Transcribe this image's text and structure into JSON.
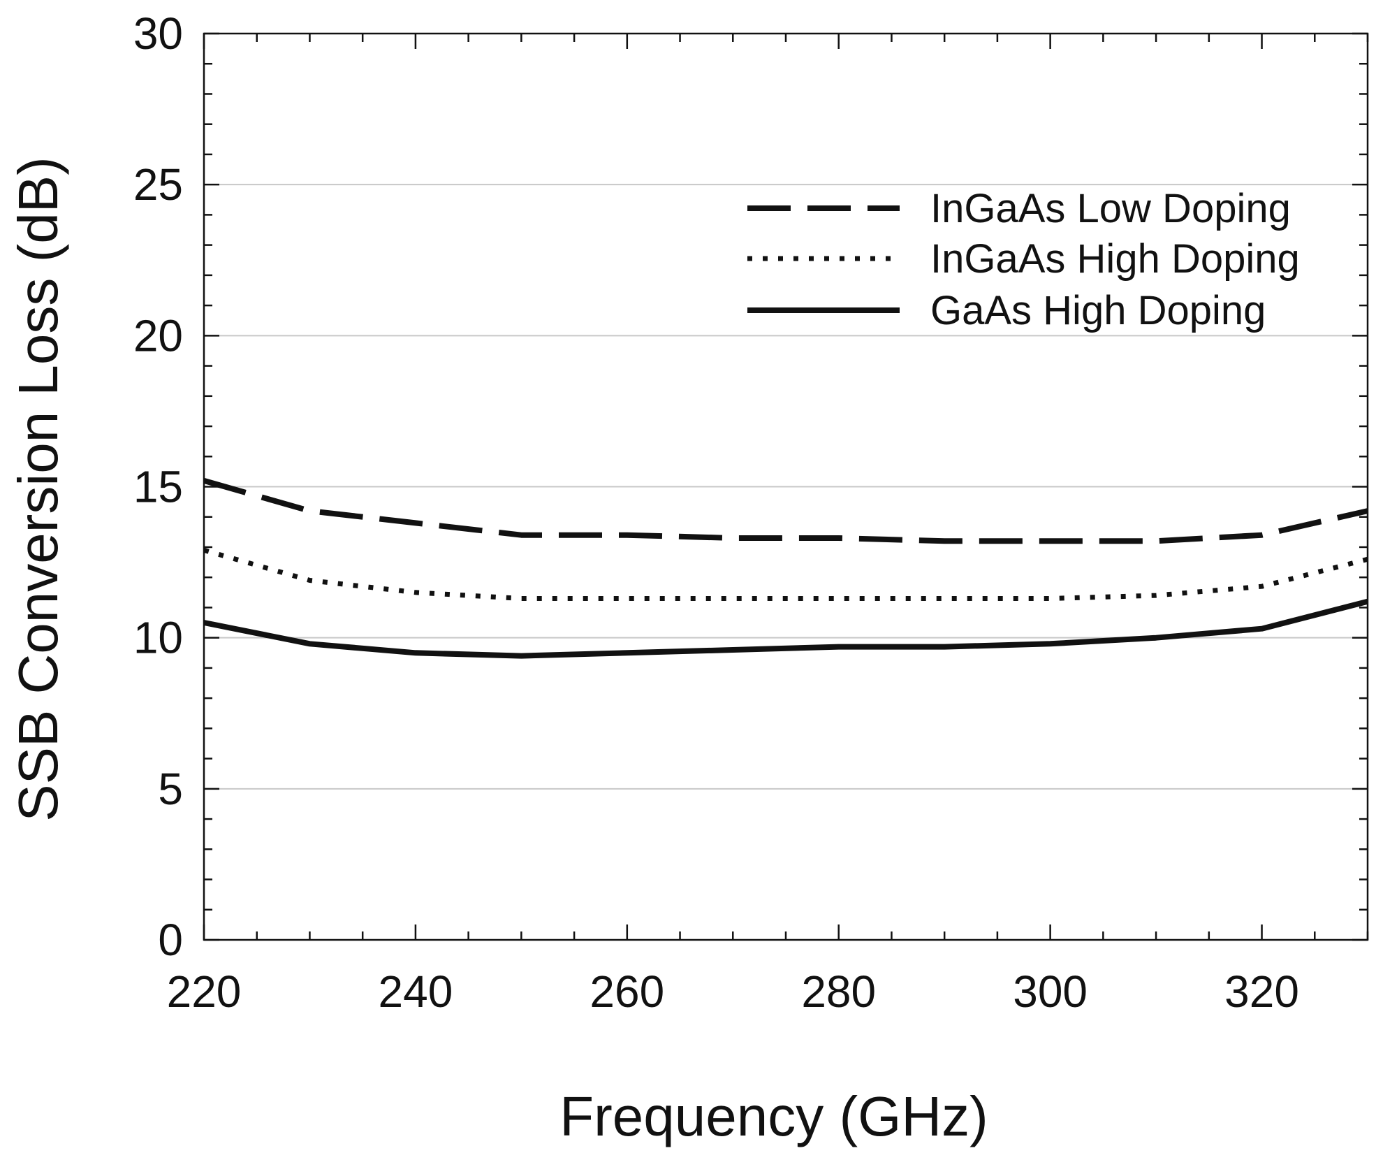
{
  "chart_data": {
    "type": "line",
    "title": "",
    "xlabel": "Frequency (GHz)",
    "ylabel": "SSB Conversion Loss (dB)",
    "xlim": [
      220,
      330
    ],
    "ylim": [
      0,
      30
    ],
    "xticks": [
      220,
      240,
      260,
      280,
      300,
      320
    ],
    "yticks": [
      0,
      5,
      10,
      15,
      20,
      25,
      30
    ],
    "grid": "horizontal",
    "legend": "top-right",
    "series": [
      {
        "name": "InGaAs Low Doping",
        "style": "dashed",
        "x": [
          220,
          230,
          240,
          250,
          260,
          270,
          280,
          290,
          300,
          310,
          320,
          330
        ],
        "y": [
          15.2,
          14.2,
          13.8,
          13.4,
          13.4,
          13.3,
          13.3,
          13.2,
          13.2,
          13.2,
          13.4,
          14.2
        ]
      },
      {
        "name": "InGaAs High Doping",
        "style": "dotted",
        "x": [
          220,
          230,
          240,
          250,
          260,
          270,
          280,
          290,
          300,
          310,
          320,
          330
        ],
        "y": [
          12.9,
          11.9,
          11.5,
          11.3,
          11.3,
          11.3,
          11.3,
          11.3,
          11.3,
          11.4,
          11.7,
          12.6
        ]
      },
      {
        "name": "GaAs High Doping",
        "style": "solid",
        "x": [
          220,
          230,
          240,
          250,
          260,
          270,
          280,
          290,
          300,
          310,
          320,
          330
        ],
        "y": [
          10.5,
          9.8,
          9.5,
          9.4,
          9.5,
          9.6,
          9.7,
          9.7,
          9.8,
          10.0,
          10.3,
          11.2
        ]
      }
    ],
    "colors": {
      "line": "#111111",
      "grid": "#c8c8c8",
      "axis": "#111111",
      "background": "#ffffff"
    }
  }
}
